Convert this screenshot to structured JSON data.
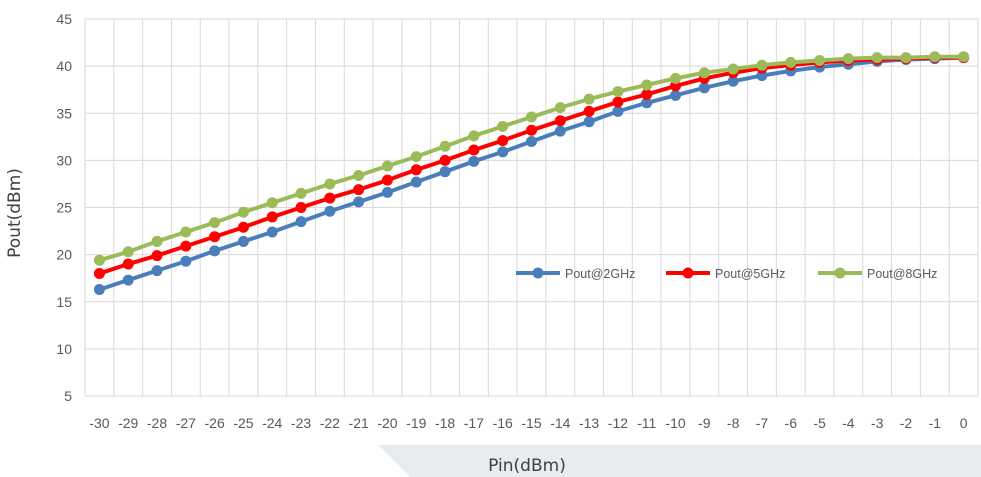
{
  "chart_data": {
    "type": "line",
    "xlabel": "Pin(dBm)",
    "ylabel": "Pout(dBm)",
    "x": [
      -30,
      -29,
      -28,
      -27,
      -26,
      -25,
      -24,
      -23,
      -22,
      -21,
      -20,
      -19,
      -18,
      -17,
      -16,
      -15,
      -14,
      -13,
      -12,
      -11,
      -10,
      -9,
      -8,
      -7,
      -6,
      -5,
      -4,
      -3,
      -2,
      -1,
      0
    ],
    "xtick_labels": [
      "-30",
      "-29",
      "-28",
      "-27",
      "-26",
      "-25",
      "-24",
      "-23",
      "-22",
      "-21",
      "-20",
      "-19",
      "-18",
      "-17",
      "-16",
      "-15",
      "-14",
      "-13",
      "-12",
      "-11",
      "-10",
      "-9",
      "-8",
      "-7",
      "-6",
      "-5",
      "-4",
      "-3",
      "-2",
      "-1",
      "0"
    ],
    "ylim": [
      5,
      45
    ],
    "yticks": [
      "5",
      "10",
      "15",
      "20",
      "25",
      "30",
      "35",
      "40",
      "45"
    ],
    "grid": true,
    "legend_position": "right",
    "series": [
      {
        "name": "Pout@2GHz",
        "color": "#4a7ebb",
        "values": [
          16.3,
          17.3,
          18.3,
          19.3,
          20.4,
          21.4,
          22.4,
          23.5,
          24.6,
          25.6,
          26.6,
          27.7,
          28.8,
          29.9,
          30.9,
          32.0,
          33.1,
          34.1,
          35.2,
          36.1,
          36.9,
          37.7,
          38.4,
          39.0,
          39.5,
          39.9,
          40.2,
          40.5,
          40.7,
          40.8,
          40.9
        ]
      },
      {
        "name": "Pout@5GHz",
        "color": "#ff0000",
        "values": [
          18.0,
          19.0,
          19.9,
          20.9,
          21.9,
          22.9,
          24.0,
          25.0,
          26.0,
          26.9,
          27.9,
          29.0,
          30.0,
          31.1,
          32.1,
          33.2,
          34.2,
          35.2,
          36.2,
          37.0,
          37.9,
          38.7,
          39.3,
          39.8,
          40.1,
          40.4,
          40.6,
          40.7,
          40.8,
          40.9,
          40.9
        ]
      },
      {
        "name": "Pout@8GHz",
        "color": "#9bbb59",
        "values": [
          19.4,
          20.3,
          21.4,
          22.4,
          23.4,
          24.5,
          25.5,
          26.5,
          27.5,
          28.4,
          29.4,
          30.4,
          31.5,
          32.6,
          33.6,
          34.6,
          35.6,
          36.5,
          37.3,
          38.0,
          38.7,
          39.3,
          39.7,
          40.1,
          40.4,
          40.6,
          40.8,
          40.9,
          40.9,
          41.0,
          41.0
        ]
      }
    ]
  }
}
